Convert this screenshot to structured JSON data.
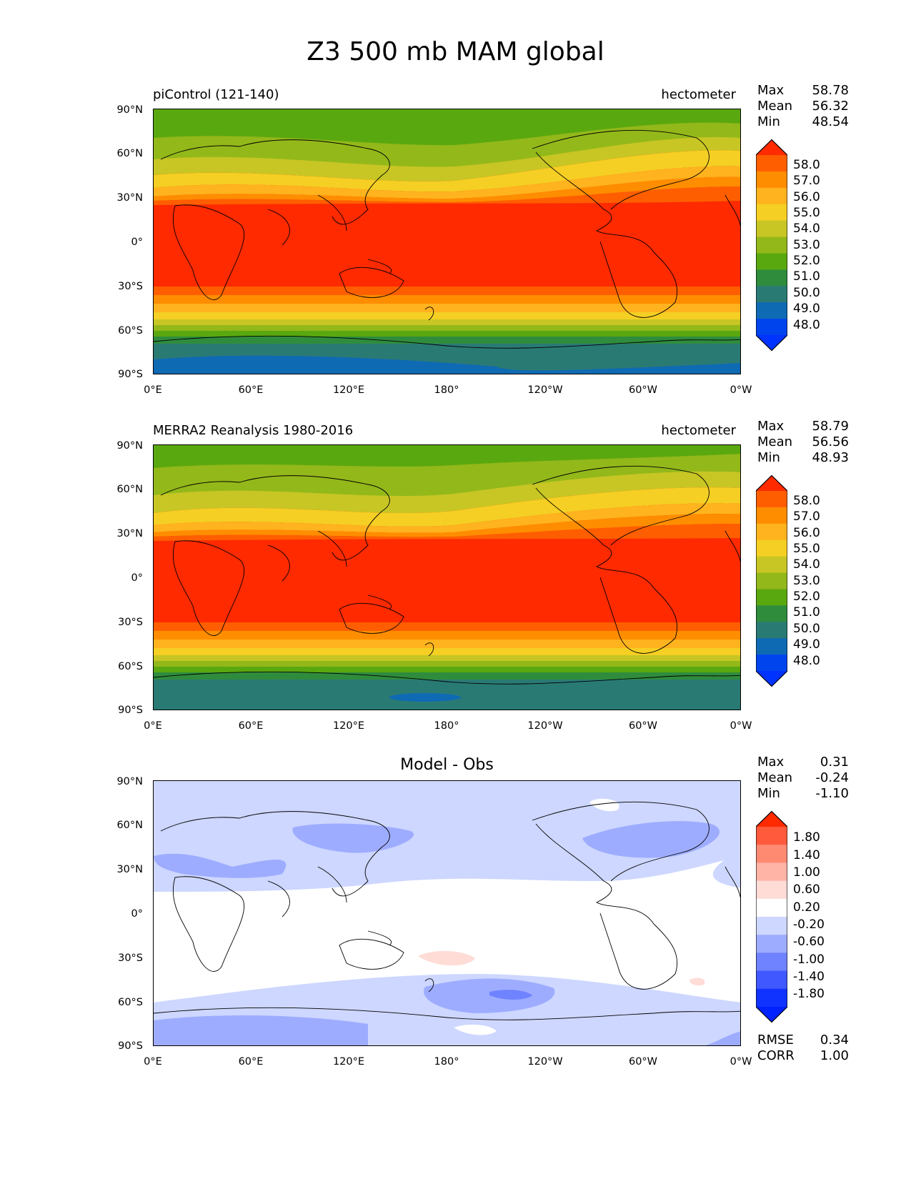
{
  "title": "Z3 500 mb MAM global",
  "lon_ticks": [
    "0°E",
    "60°E",
    "120°E",
    "180°",
    "120°W",
    "60°W",
    "0°W"
  ],
  "lat_ticks": [
    "90°N",
    "60°N",
    "30°N",
    "0°",
    "30°S",
    "60°S",
    "90°S"
  ],
  "panels": [
    {
      "left_title": "piControl (121-140)",
      "right_title": "hectometer",
      "center_title": "",
      "stats": [
        {
          "label": "Max",
          "value": "58.78"
        },
        {
          "label": "Mean",
          "value": "56.32"
        },
        {
          "label": "Min",
          "value": "48.54"
        }
      ],
      "colorbar_labels": [
        "58.0",
        "57.0",
        "56.0",
        "55.0",
        "54.0",
        "53.0",
        "52.0",
        "51.0",
        "50.0",
        "49.0",
        "48.0"
      ],
      "colorbar_colors": [
        "#ff2a00",
        "#ff5e00",
        "#ff8d00",
        "#ffb31e",
        "#f5cf24",
        "#c7c624",
        "#93b81a",
        "#5aa80f",
        "#2f8c3d",
        "#2a7a74",
        "#0f6ab4",
        "#0044ee",
        "#0033ff"
      ]
    },
    {
      "left_title": "MERRA2 Reanalysis 1980-2016",
      "right_title": "hectometer",
      "center_title": "",
      "stats": [
        {
          "label": "Max",
          "value": "58.79"
        },
        {
          "label": "Mean",
          "value": "56.56"
        },
        {
          "label": "Min",
          "value": "48.93"
        }
      ],
      "colorbar_labels": [
        "58.0",
        "57.0",
        "56.0",
        "55.0",
        "54.0",
        "53.0",
        "52.0",
        "51.0",
        "50.0",
        "49.0",
        "48.0"
      ],
      "colorbar_colors": [
        "#ff2a00",
        "#ff5e00",
        "#ff8d00",
        "#ffb31e",
        "#f5cf24",
        "#c7c624",
        "#93b81a",
        "#5aa80f",
        "#2f8c3d",
        "#2a7a74",
        "#0f6ab4",
        "#0044ee",
        "#0033ff"
      ]
    },
    {
      "left_title": "",
      "right_title": "",
      "center_title": "Model - Obs",
      "stats": [
        {
          "label": "Max",
          "value": "0.31"
        },
        {
          "label": "Mean",
          "value": "-0.24"
        },
        {
          "label": "Min",
          "value": "-1.10"
        }
      ],
      "colorbar_labels": [
        "1.80",
        "1.40",
        "1.00",
        "0.60",
        "0.20",
        "-0.20",
        "-0.60",
        "-1.00",
        "-1.40",
        "-1.80"
      ],
      "colorbar_colors": [
        "#ff2a00",
        "#ff5a3c",
        "#ff8a72",
        "#ffb4a6",
        "#ffdcd6",
        "#ffffff",
        "#cdd7ff",
        "#9eacff",
        "#6f82ff",
        "#3f58ff",
        "#1033ff",
        "#0022ff"
      ],
      "footer_stats": [
        {
          "label": "RMSE",
          "value": "0.34"
        },
        {
          "label": "CORR",
          "value": "1.00"
        }
      ]
    }
  ]
}
